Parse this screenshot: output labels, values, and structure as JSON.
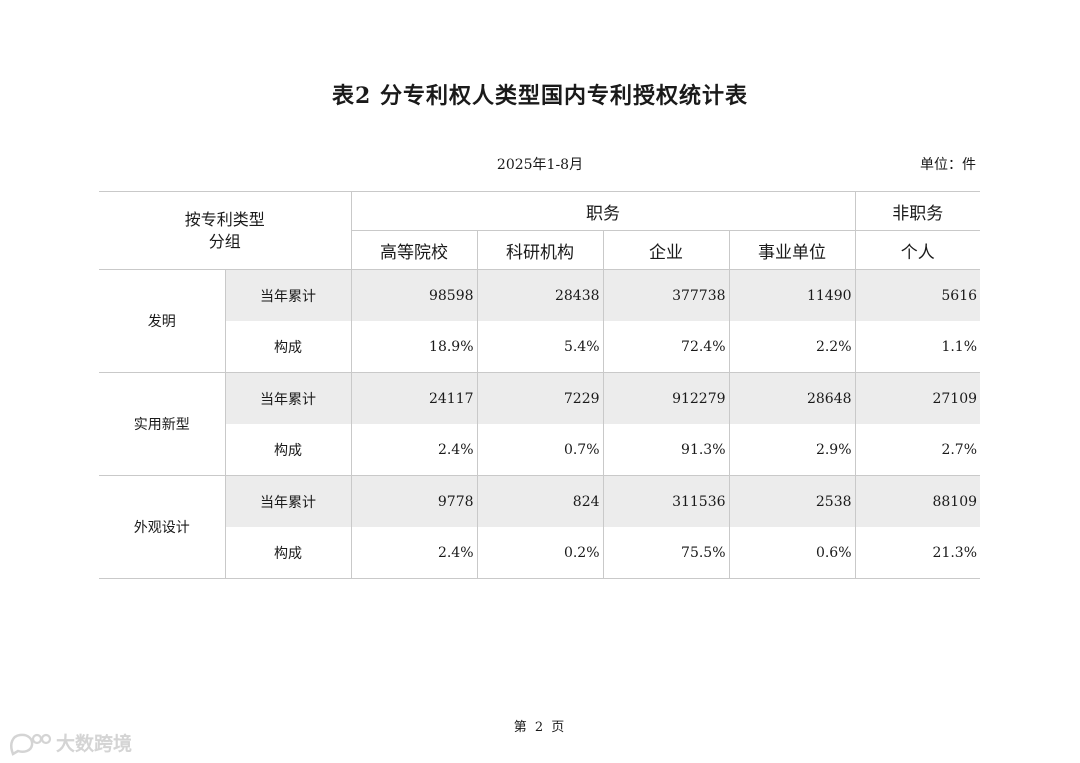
{
  "title": "表2  分专利权人类型国内专利授权统计表",
  "period": "2025年1-8月",
  "unit": "单位：件",
  "table": {
    "group_header": [
      "按专利类型",
      "分组"
    ],
    "service": "职务",
    "non_service": "非职务",
    "columns": [
      "高等院校",
      "科研机构",
      "企业",
      "事业单位",
      "个人"
    ],
    "metric_labels": {
      "cumulative": "当年累计",
      "composition": "构成"
    },
    "categories": [
      {
        "name": "发明",
        "cumulative": [
          "98598",
          "28438",
          "377738",
          "11490",
          "5616"
        ],
        "composition": [
          "18.9%",
          "5.4%",
          "72.4%",
          "2.2%",
          "1.1%"
        ]
      },
      {
        "name": "实用新型",
        "cumulative": [
          "24117",
          "7229",
          "912279",
          "28648",
          "27109"
        ],
        "composition": [
          "2.4%",
          "0.7%",
          "91.3%",
          "2.9%",
          "2.7%"
        ]
      },
      {
        "name": "外观设计",
        "cumulative": [
          "9778",
          "824",
          "311536",
          "2538",
          "88109"
        ],
        "composition": [
          "2.4%",
          "0.2%",
          "75.5%",
          "0.6%",
          "21.3%"
        ]
      }
    ]
  },
  "footer": "第 2 页",
  "watermark": "大数跨境",
  "colors": {
    "shaded_row": "#ececec",
    "rule": "#c9c9c9",
    "text": "#1a1a1a",
    "watermark": "#d4d4d4"
  }
}
